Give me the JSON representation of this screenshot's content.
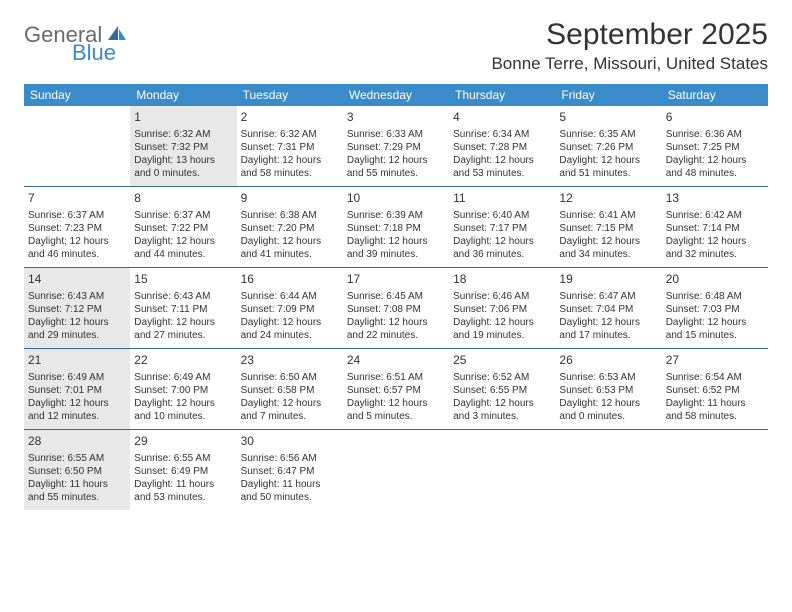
{
  "logo": {
    "top": "General",
    "bottom": "Blue"
  },
  "title": "September 2025",
  "location": "Bonne Terre, Missouri, United States",
  "brand_color": "#3a8bc9",
  "divider_color": "#3a6a94",
  "shaded_bg": "#e8e8e8",
  "text_color": "#333333",
  "day_headers": [
    "Sunday",
    "Monday",
    "Tuesday",
    "Wednesday",
    "Thursday",
    "Friday",
    "Saturday"
  ],
  "weeks": [
    [
      {
        "empty": true
      },
      {
        "n": "1",
        "shaded": true,
        "sunrise": "Sunrise: 6:32 AM",
        "sunset": "Sunset: 7:32 PM",
        "daylight1": "Daylight: 13 hours",
        "daylight2": "and 0 minutes."
      },
      {
        "n": "2",
        "sunrise": "Sunrise: 6:32 AM",
        "sunset": "Sunset: 7:31 PM",
        "daylight1": "Daylight: 12 hours",
        "daylight2": "and 58 minutes."
      },
      {
        "n": "3",
        "sunrise": "Sunrise: 6:33 AM",
        "sunset": "Sunset: 7:29 PM",
        "daylight1": "Daylight: 12 hours",
        "daylight2": "and 55 minutes."
      },
      {
        "n": "4",
        "sunrise": "Sunrise: 6:34 AM",
        "sunset": "Sunset: 7:28 PM",
        "daylight1": "Daylight: 12 hours",
        "daylight2": "and 53 minutes."
      },
      {
        "n": "5",
        "sunrise": "Sunrise: 6:35 AM",
        "sunset": "Sunset: 7:26 PM",
        "daylight1": "Daylight: 12 hours",
        "daylight2": "and 51 minutes."
      },
      {
        "n": "6",
        "sunrise": "Sunrise: 6:36 AM",
        "sunset": "Sunset: 7:25 PM",
        "daylight1": "Daylight: 12 hours",
        "daylight2": "and 48 minutes."
      }
    ],
    [
      {
        "n": "7",
        "sunrise": "Sunrise: 6:37 AM",
        "sunset": "Sunset: 7:23 PM",
        "daylight1": "Daylight: 12 hours",
        "daylight2": "and 46 minutes."
      },
      {
        "n": "8",
        "sunrise": "Sunrise: 6:37 AM",
        "sunset": "Sunset: 7:22 PM",
        "daylight1": "Daylight: 12 hours",
        "daylight2": "and 44 minutes."
      },
      {
        "n": "9",
        "sunrise": "Sunrise: 6:38 AM",
        "sunset": "Sunset: 7:20 PM",
        "daylight1": "Daylight: 12 hours",
        "daylight2": "and 41 minutes."
      },
      {
        "n": "10",
        "sunrise": "Sunrise: 6:39 AM",
        "sunset": "Sunset: 7:18 PM",
        "daylight1": "Daylight: 12 hours",
        "daylight2": "and 39 minutes."
      },
      {
        "n": "11",
        "sunrise": "Sunrise: 6:40 AM",
        "sunset": "Sunset: 7:17 PM",
        "daylight1": "Daylight: 12 hours",
        "daylight2": "and 36 minutes."
      },
      {
        "n": "12",
        "sunrise": "Sunrise: 6:41 AM",
        "sunset": "Sunset: 7:15 PM",
        "daylight1": "Daylight: 12 hours",
        "daylight2": "and 34 minutes."
      },
      {
        "n": "13",
        "sunrise": "Sunrise: 6:42 AM",
        "sunset": "Sunset: 7:14 PM",
        "daylight1": "Daylight: 12 hours",
        "daylight2": "and 32 minutes."
      }
    ],
    [
      {
        "n": "14",
        "shaded": true,
        "sunrise": "Sunrise: 6:43 AM",
        "sunset": "Sunset: 7:12 PM",
        "daylight1": "Daylight: 12 hours",
        "daylight2": "and 29 minutes."
      },
      {
        "n": "15",
        "sunrise": "Sunrise: 6:43 AM",
        "sunset": "Sunset: 7:11 PM",
        "daylight1": "Daylight: 12 hours",
        "daylight2": "and 27 minutes."
      },
      {
        "n": "16",
        "sunrise": "Sunrise: 6:44 AM",
        "sunset": "Sunset: 7:09 PM",
        "daylight1": "Daylight: 12 hours",
        "daylight2": "and 24 minutes."
      },
      {
        "n": "17",
        "sunrise": "Sunrise: 6:45 AM",
        "sunset": "Sunset: 7:08 PM",
        "daylight1": "Daylight: 12 hours",
        "daylight2": "and 22 minutes."
      },
      {
        "n": "18",
        "sunrise": "Sunrise: 6:46 AM",
        "sunset": "Sunset: 7:06 PM",
        "daylight1": "Daylight: 12 hours",
        "daylight2": "and 19 minutes."
      },
      {
        "n": "19",
        "sunrise": "Sunrise: 6:47 AM",
        "sunset": "Sunset: 7:04 PM",
        "daylight1": "Daylight: 12 hours",
        "daylight2": "and 17 minutes."
      },
      {
        "n": "20",
        "sunrise": "Sunrise: 6:48 AM",
        "sunset": "Sunset: 7:03 PM",
        "daylight1": "Daylight: 12 hours",
        "daylight2": "and 15 minutes."
      }
    ],
    [
      {
        "n": "21",
        "shaded": true,
        "sunrise": "Sunrise: 6:49 AM",
        "sunset": "Sunset: 7:01 PM",
        "daylight1": "Daylight: 12 hours",
        "daylight2": "and 12 minutes."
      },
      {
        "n": "22",
        "sunrise": "Sunrise: 6:49 AM",
        "sunset": "Sunset: 7:00 PM",
        "daylight1": "Daylight: 12 hours",
        "daylight2": "and 10 minutes."
      },
      {
        "n": "23",
        "sunrise": "Sunrise: 6:50 AM",
        "sunset": "Sunset: 6:58 PM",
        "daylight1": "Daylight: 12 hours",
        "daylight2": "and 7 minutes."
      },
      {
        "n": "24",
        "sunrise": "Sunrise: 6:51 AM",
        "sunset": "Sunset: 6:57 PM",
        "daylight1": "Daylight: 12 hours",
        "daylight2": "and 5 minutes."
      },
      {
        "n": "25",
        "sunrise": "Sunrise: 6:52 AM",
        "sunset": "Sunset: 6:55 PM",
        "daylight1": "Daylight: 12 hours",
        "daylight2": "and 3 minutes."
      },
      {
        "n": "26",
        "sunrise": "Sunrise: 6:53 AM",
        "sunset": "Sunset: 6:53 PM",
        "daylight1": "Daylight: 12 hours",
        "daylight2": "and 0 minutes."
      },
      {
        "n": "27",
        "sunrise": "Sunrise: 6:54 AM",
        "sunset": "Sunset: 6:52 PM",
        "daylight1": "Daylight: 11 hours",
        "daylight2": "and 58 minutes."
      }
    ],
    [
      {
        "n": "28",
        "shaded": true,
        "sunrise": "Sunrise: 6:55 AM",
        "sunset": "Sunset: 6:50 PM",
        "daylight1": "Daylight: 11 hours",
        "daylight2": "and 55 minutes."
      },
      {
        "n": "29",
        "sunrise": "Sunrise: 6:55 AM",
        "sunset": "Sunset: 6:49 PM",
        "daylight1": "Daylight: 11 hours",
        "daylight2": "and 53 minutes."
      },
      {
        "n": "30",
        "sunrise": "Sunrise: 6:56 AM",
        "sunset": "Sunset: 6:47 PM",
        "daylight1": "Daylight: 11 hours",
        "daylight2": "and 50 minutes."
      },
      {
        "empty": true
      },
      {
        "empty": true
      },
      {
        "empty": true
      },
      {
        "empty": true
      }
    ]
  ]
}
